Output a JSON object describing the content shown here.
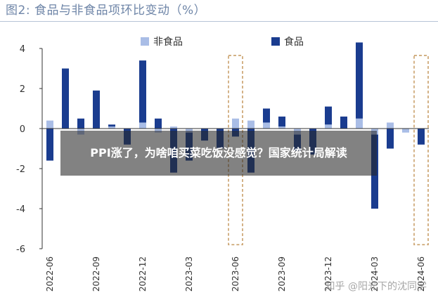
{
  "title": "图2: 食品与非食品项环比变动（%）",
  "overlay_text": "PPI涨了，为啥咱买菜吃饭没感觉？国家统计局解读",
  "watermark": "知乎 @阳光下的沈同学",
  "colors": {
    "non_food": "#a9bde6",
    "food": "#1a3c8f",
    "highlight": "#c9a06a",
    "axis": "#333333"
  },
  "chart_data": {
    "type": "bar",
    "title": "图2: 食品与非食品项环比变动（%）",
    "xlabel": "",
    "ylabel": "",
    "ylim": [
      -6,
      4
    ],
    "yticks": [
      4,
      2,
      0,
      -2,
      -4,
      -6
    ],
    "legend_position": "top-right",
    "categories": [
      "2022-06",
      "2022-07",
      "2022-08",
      "2022-09",
      "2022-10",
      "2022-11",
      "2022-12",
      "2023-01",
      "2023-02",
      "2023-03",
      "2023-04",
      "2023-05",
      "2023-06",
      "2023-07",
      "2023-08",
      "2023-09",
      "2023-10",
      "2023-11",
      "2023-12",
      "2024-01",
      "2024-02",
      "2024-03",
      "2024-04",
      "2024-05",
      "2024-06"
    ],
    "x_tick_labels": [
      "2022-06",
      "2022-09",
      "2022-12",
      "2023-03",
      "2023-06",
      "2023-09",
      "2023-12",
      "2024-03",
      "2024-06"
    ],
    "series": [
      {
        "name": "非食品",
        "values": [
          0.4,
          0.0,
          -0.3,
          0.0,
          0.1,
          0.0,
          0.3,
          -0.2,
          0.1,
          -0.2,
          0.0,
          0.0,
          0.5,
          0.4,
          0.3,
          0.1,
          -0.3,
          0.0,
          0.2,
          0.0,
          0.5,
          -0.3,
          0.3,
          -0.2,
          0.0
        ]
      },
      {
        "name": "食品",
        "values": [
          -1.6,
          3.0,
          0.5,
          1.9,
          0.1,
          -0.8,
          3.1,
          0.5,
          -2.2,
          -1.4,
          -0.6,
          -1.0,
          -0.4,
          -2.2,
          0.7,
          0.5,
          -0.8,
          -1.3,
          0.9,
          0.6,
          3.8,
          -3.7,
          -1.0,
          0.0,
          -0.8
        ]
      }
    ],
    "highlighted_categories": [
      "2023-06",
      "2024-06"
    ],
    "grid": false
  }
}
